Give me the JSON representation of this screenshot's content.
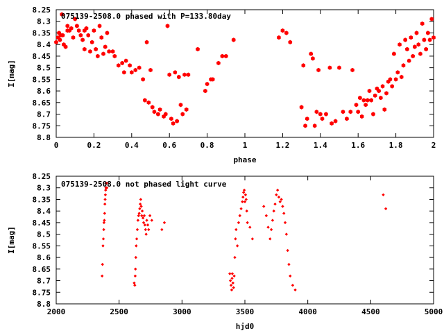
{
  "chart_data": [
    {
      "type": "scatter",
      "title": "075139-2508.0 phased with P=133.80day",
      "xlabel": "phase",
      "ylabel": "I[mag]",
      "xlim": [
        0,
        2
      ],
      "ylim": [
        8.8,
        8.25
      ],
      "y_inverted": true,
      "grid": false,
      "legend": "none",
      "marker": "filled-hexagon",
      "color": "#ff0000",
      "xticks": [
        "0",
        "0.2",
        "0.4",
        "0.6",
        "0.8",
        "1",
        "1.2",
        "1.4",
        "1.6",
        "1.8",
        "2"
      ],
      "yticks": [
        "8.25",
        "8.3",
        "8.35",
        "8.4",
        "8.45",
        "8.5",
        "8.55",
        "8.6",
        "8.65",
        "8.7",
        "8.75",
        "8.8"
      ],
      "series": [
        {
          "x": [
            0.0,
            0.01,
            0.015,
            0.02,
            0.025,
            0.03,
            0.035,
            0.04,
            0.05,
            0.06,
            0.06,
            0.07,
            0.08,
            0.09,
            0.1,
            0.11,
            0.12,
            0.13,
            0.14,
            0.15,
            0.15,
            0.16,
            0.17,
            0.18,
            0.19,
            0.2,
            0.21,
            0.22,
            0.23,
            0.24,
            0.25,
            0.26,
            0.27,
            0.28,
            0.3,
            0.31,
            0.33,
            0.35,
            0.36,
            0.37,
            0.39,
            0.4,
            0.42,
            0.44,
            0.46,
            0.47,
            0.48,
            0.49,
            0.5,
            0.51,
            0.52,
            0.54,
            0.55,
            0.57,
            0.58,
            0.59,
            0.6,
            0.61,
            0.62,
            0.63,
            0.64,
            0.65,
            0.66,
            0.67,
            0.68,
            0.69,
            0.7,
            0.75,
            0.79,
            0.8,
            0.82,
            0.83,
            0.86,
            0.88,
            0.9,
            0.94,
            1.18,
            1.2,
            1.22,
            1.24,
            1.3,
            1.31,
            1.32,
            1.33,
            1.35,
            1.36,
            1.37,
            1.38,
            1.39,
            1.4,
            1.41,
            1.43,
            1.45,
            1.46,
            1.48,
            1.5,
            1.52,
            1.54,
            1.56,
            1.57,
            1.59,
            1.6,
            1.61,
            1.62,
            1.63,
            1.64,
            1.65,
            1.66,
            1.67,
            1.68,
            1.69,
            1.7,
            1.71,
            1.72,
            1.73,
            1.74,
            1.75,
            1.76,
            1.77,
            1.78,
            1.79,
            1.8,
            1.81,
            1.82,
            1.83,
            1.84,
            1.85,
            1.86,
            1.87,
            1.88,
            1.89,
            1.9,
            1.91,
            1.92,
            1.93,
            1.94,
            1.95,
            1.96,
            1.97,
            1.98,
            1.99,
            2.0
          ],
          "y": [
            8.39,
            8.37,
            8.35,
            8.38,
            8.36,
            8.27,
            8.36,
            8.4,
            8.41,
            8.34,
            8.32,
            8.34,
            8.33,
            8.37,
            8.29,
            8.32,
            8.34,
            8.36,
            8.38,
            8.34,
            8.42,
            8.33,
            8.36,
            8.43,
            8.39,
            8.34,
            8.42,
            8.45,
            8.32,
            8.37,
            8.44,
            8.41,
            8.35,
            8.43,
            8.43,
            8.45,
            8.49,
            8.48,
            8.52,
            8.47,
            8.49,
            8.52,
            8.51,
            8.5,
            8.55,
            8.64,
            8.39,
            8.65,
            8.51,
            8.67,
            8.69,
            8.7,
            8.68,
            8.71,
            8.7,
            8.32,
            8.53,
            8.72,
            8.74,
            8.52,
            8.73,
            8.54,
            8.66,
            8.7,
            8.53,
            8.68,
            8.53,
            8.42,
            8.6,
            8.57,
            8.55,
            8.55,
            8.48,
            8.45,
            8.45,
            8.38,
            8.37,
            8.34,
            8.35,
            8.39,
            8.67,
            8.49,
            8.75,
            8.72,
            8.44,
            8.46,
            8.75,
            8.69,
            8.51,
            8.7,
            8.72,
            8.7,
            8.5,
            8.74,
            8.73,
            8.5,
            8.69,
            8.72,
            8.69,
            8.51,
            8.66,
            8.69,
            8.63,
            8.71,
            8.64,
            8.66,
            8.64,
            8.6,
            8.64,
            8.7,
            8.62,
            8.59,
            8.6,
            8.63,
            8.58,
            8.68,
            8.61,
            8.56,
            8.55,
            8.58,
            8.44,
            8.55,
            8.52,
            8.4,
            8.54,
            8.49,
            8.38,
            8.42,
            8.47,
            8.37,
            8.45,
            8.41,
            8.35,
            8.4,
            8.44,
            8.31,
            8.38,
            8.42,
            8.35,
            8.38,
            8.29,
            8.37
          ]
        }
      ]
    },
    {
      "type": "scatter",
      "title": "075139-2508.0 not phased light curve",
      "xlabel": "hjd0",
      "ylabel": "I[mag]",
      "xlim": [
        2000,
        5000
      ],
      "ylim": [
        8.8,
        8.25
      ],
      "y_inverted": true,
      "grid": false,
      "legend": "none",
      "marker": "small-diamond",
      "color": "#ff0000",
      "xticks": [
        "2000",
        "2500",
        "3000",
        "3500",
        "4000",
        "4500",
        "5000"
      ],
      "yticks": [
        "8.25",
        "8.3",
        "8.35",
        "8.4",
        "8.45",
        "8.5",
        "8.55",
        "8.6",
        "8.65",
        "8.7",
        "8.75",
        "8.8"
      ],
      "series": [
        {
          "x": [
            2365,
            2368,
            2372,
            2375,
            2378,
            2380,
            2383,
            2385,
            2387,
            2389,
            2391,
            2393,
            2395,
            2397,
            2399,
            2401,
            2403,
            2620,
            2625,
            2628,
            2630,
            2633,
            2636,
            2640,
            2645,
            2650,
            2655,
            2660,
            2664,
            2668,
            2672,
            2676,
            2680,
            2684,
            2690,
            2695,
            2700,
            2705,
            2710,
            2715,
            2720,
            2728,
            2735,
            2745,
            2760,
            2840,
            2860,
            3380,
            3385,
            3390,
            3395,
            3398,
            3400,
            3405,
            3410,
            3415,
            3420,
            3425,
            3430,
            3440,
            3450,
            3460,
            3470,
            3480,
            3485,
            3490,
            3495,
            3500,
            3505,
            3510,
            3515,
            3520,
            3540,
            3560,
            3650,
            3670,
            3685,
            3700,
            3710,
            3720,
            3730,
            3740,
            3750,
            3760,
            3770,
            3780,
            3790,
            3800,
            3810,
            3820,
            3830,
            3840,
            3850,
            3860,
            3880,
            3900,
            4600,
            4620
          ],
          "y": [
            8.68,
            8.63,
            8.55,
            8.52,
            8.48,
            8.45,
            8.44,
            8.41,
            8.37,
            8.35,
            8.33,
            8.31,
            8.3,
            8.28,
            8.3,
            8.28,
            8.3,
            8.71,
            8.72,
            8.68,
            8.65,
            8.6,
            8.55,
            8.52,
            8.48,
            8.44,
            8.42,
            8.41,
            8.39,
            8.37,
            8.35,
            8.38,
            8.42,
            8.4,
            8.43,
            8.45,
            8.42,
            8.46,
            8.48,
            8.5,
            8.44,
            8.46,
            8.48,
            8.42,
            8.44,
            8.48,
            8.45,
            8.67,
            8.7,
            8.72,
            8.74,
            8.69,
            8.67,
            8.71,
            8.73,
            8.68,
            8.6,
            8.52,
            8.48,
            8.55,
            8.45,
            8.42,
            8.39,
            8.36,
            8.34,
            8.32,
            8.31,
            8.36,
            8.33,
            8.35,
            8.4,
            8.45,
            8.47,
            8.52,
            8.38,
            8.42,
            8.47,
            8.52,
            8.48,
            8.44,
            8.4,
            8.37,
            8.33,
            8.31,
            8.34,
            8.36,
            8.35,
            8.38,
            8.41,
            8.45,
            8.5,
            8.57,
            8.63,
            8.68,
            8.72,
            8.74,
            8.33,
            8.39
          ]
        }
      ]
    }
  ]
}
